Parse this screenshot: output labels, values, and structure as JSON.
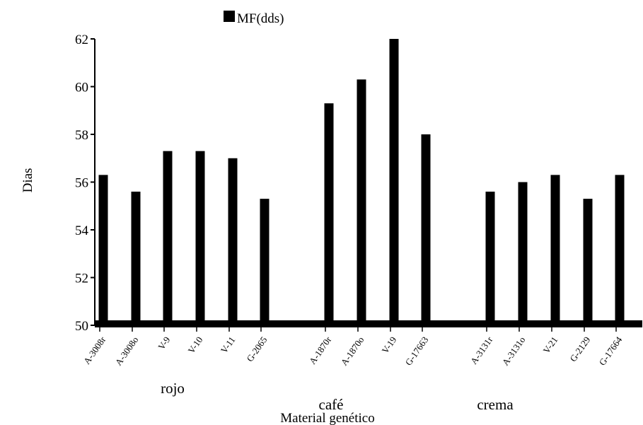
{
  "chart_data": {
    "type": "bar",
    "title": "",
    "xlabel": "Material genético",
    "ylabel": "Dias",
    "ylim": [
      50,
      62
    ],
    "yticks": [
      50,
      52,
      54,
      56,
      58,
      60,
      62
    ],
    "grid": false,
    "legend_position": "top",
    "series": [
      {
        "name": "MF(dds)",
        "color": "#000000",
        "values": [
          56.3,
          55.6,
          57.3,
          57.3,
          57.0,
          55.3,
          59.3,
          60.3,
          62.0,
          58.0,
          55.6,
          56.0,
          56.3,
          55.3,
          56.3
        ]
      }
    ],
    "categories": [
      "A-3008r",
      "A-3008o",
      "V-9",
      "V-10",
      "V-11",
      "G-2065",
      "A-1870r",
      "A-1870o",
      "V-19",
      "G-17663",
      "A-3131r",
      "A-3131o",
      "V-21",
      "G-2129",
      "G-17664"
    ],
    "groups": [
      {
        "label": "rojo",
        "count": 6
      },
      {
        "label": "café",
        "count": 4
      },
      {
        "label": "crema",
        "count": 5
      }
    ]
  }
}
